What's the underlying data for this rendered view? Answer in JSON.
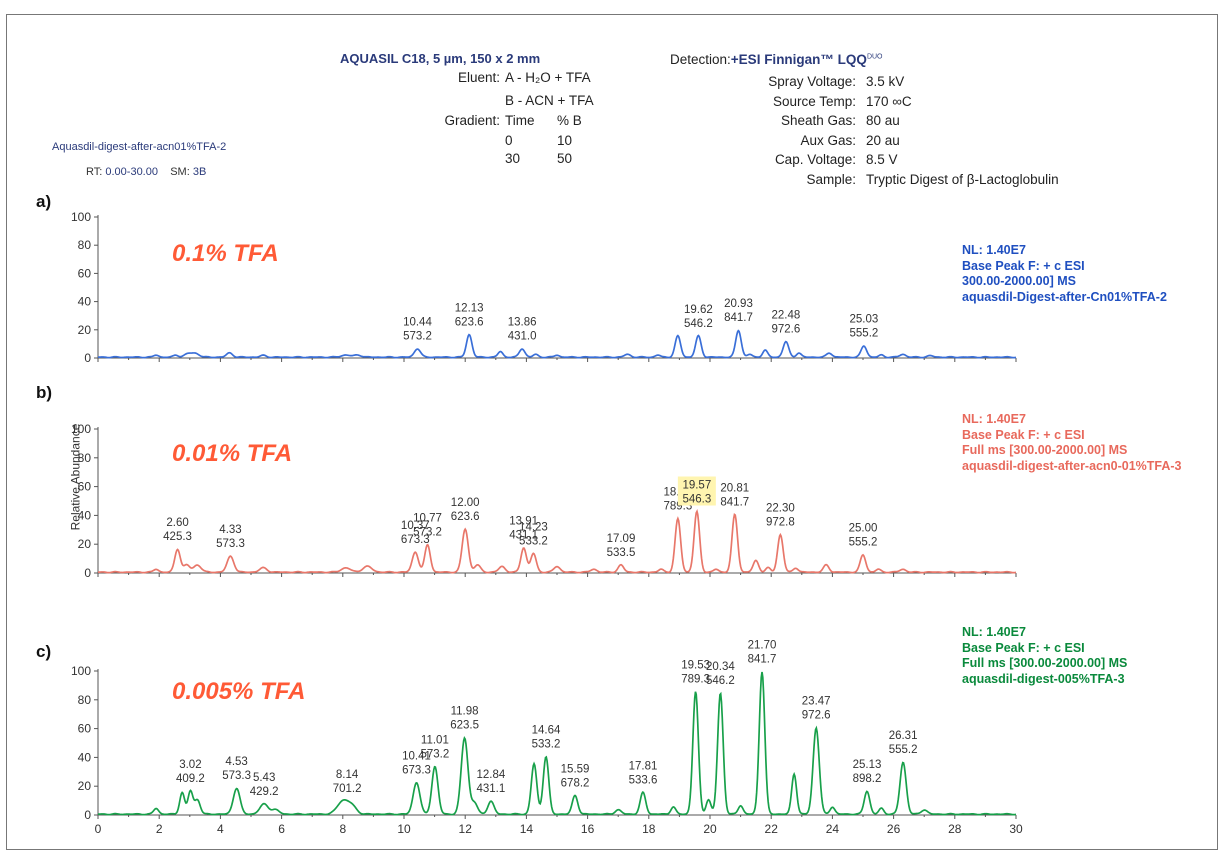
{
  "header": {
    "column": "AQUASIL C18, 5 µm, 150 x 2 mm",
    "eluent_label": "Eluent:",
    "eluent_a": "A - H₂O + TFA",
    "eluent_b": "B - ACN + TFA",
    "gradient_label": "Gradient:",
    "gradient_table": [
      [
        "Time",
        "% B"
      ],
      [
        "0",
        "10"
      ],
      [
        "30",
        "50"
      ]
    ],
    "detection_label": "Detection:",
    "detection_value": "+ESI Finnigan™ LQQ",
    "detection_sup": "DUO",
    "params": [
      {
        "label": "Spray Voltage:",
        "value": "3.5 kV"
      },
      {
        "label": "Source Temp:",
        "value": "170 ∞C"
      },
      {
        "label": "Sheath Gas:",
        "value": "80 au"
      },
      {
        "label": "Aux Gas:",
        "value": "20 au"
      },
      {
        "label": "Cap. Voltage:",
        "value": "8.5 V"
      },
      {
        "label": "Sample:",
        "value": "Tryptic Digest of β-Lactoglobulin"
      }
    ],
    "file_name": "Aquasdil-digest-after-acn01%TFA-2",
    "rt_label": "RT:",
    "rt_value": "0.00-30.00",
    "sm_label": "SM:",
    "sm_value": "3B"
  },
  "colors": {
    "a": "#3a6fd8",
    "b": "#e8776a",
    "c": "#18a04a"
  },
  "chart_data": [
    {
      "type": "line",
      "panel": "a)",
      "label": "0.1% TFA",
      "ylabel": "",
      "xlim": [
        0,
        30
      ],
      "ylim": [
        0,
        100
      ],
      "yticks": [
        0,
        20,
        40,
        60,
        80,
        100
      ],
      "info": [
        "NL: 1.40E7",
        "Base Peak F: + c ESI",
        "300.00-2000.00]  MS",
        "aquasdil-Digest-after-Cn01%TFA-2"
      ],
      "peaks": [
        [
          1.9,
          1.5,
          0.08
        ],
        [
          2.55,
          1.5,
          0.08
        ],
        [
          2.95,
          2.5,
          0.12
        ],
        [
          3.2,
          2.5,
          0.12
        ],
        [
          4.3,
          3,
          0.1
        ],
        [
          5.4,
          1.2,
          0.1
        ],
        [
          8.1,
          1.5,
          0.15
        ],
        [
          8.5,
          1.5,
          0.12
        ],
        [
          10.44,
          6,
          0.1
        ],
        [
          12.13,
          16,
          0.09
        ],
        [
          13.15,
          4,
          0.08
        ],
        [
          13.86,
          6,
          0.09
        ],
        [
          14.3,
          2,
          0.08
        ],
        [
          15.0,
          1.5,
          0.08
        ],
        [
          17.3,
          2,
          0.1
        ],
        [
          18.3,
          1.5,
          0.08
        ],
        [
          18.95,
          15,
          0.09
        ],
        [
          19.62,
          15,
          0.09
        ],
        [
          20.93,
          19,
          0.09
        ],
        [
          21.3,
          2,
          0.08
        ],
        [
          21.8,
          5,
          0.08
        ],
        [
          22.48,
          11,
          0.09
        ],
        [
          22.9,
          3,
          0.08
        ],
        [
          23.9,
          3,
          0.09
        ],
        [
          25.03,
          8,
          0.09
        ],
        [
          25.6,
          1.5,
          0.08
        ],
        [
          26.3,
          2,
          0.1
        ],
        [
          27.2,
          1,
          0.1
        ]
      ],
      "annotations": [
        {
          "rt": "10.44",
          "mz": "573.2",
          "x": 10.44,
          "y": 6
        },
        {
          "rt": "12.13",
          "mz": "623.6",
          "x": 12.13,
          "y": 16
        },
        {
          "rt": "13.86",
          "mz": "431.0",
          "x": 13.86,
          "y": 6
        },
        {
          "rt": "19.62",
          "mz": "546.2",
          "x": 19.62,
          "y": 15
        },
        {
          "rt": "20.93",
          "mz": "841.7",
          "x": 20.93,
          "y": 19
        },
        {
          "rt": "22.48",
          "mz": "972.6",
          "x": 22.48,
          "y": 11
        },
        {
          "rt": "25.03",
          "mz": "555.2",
          "x": 25.03,
          "y": 8
        }
      ]
    },
    {
      "type": "line",
      "panel": "b)",
      "label": "0.01% TFA",
      "ylabel": "Relative Abundance",
      "xlim": [
        0,
        30
      ],
      "ylim": [
        0,
        100
      ],
      "yticks": [
        0,
        20,
        40,
        60,
        80,
        100
      ],
      "info": [
        "NL: 1.40E7",
        "Base Peak F: + c ESI",
        "Full ms [300.00-2000.00] MS",
        "aquasdil-digest-after-acn0-01%TFA-3"
      ],
      "peaks": [
        [
          1.9,
          2,
          0.08
        ],
        [
          2.6,
          16,
          0.09
        ],
        [
          2.9,
          5,
          0.1
        ],
        [
          3.25,
          5,
          0.12
        ],
        [
          4.33,
          11,
          0.11
        ],
        [
          5.4,
          3,
          0.12
        ],
        [
          8.1,
          3,
          0.15
        ],
        [
          8.8,
          4,
          0.15
        ],
        [
          10.37,
          14,
          0.1
        ],
        [
          10.77,
          19,
          0.09
        ],
        [
          12.0,
          30,
          0.1
        ],
        [
          12.4,
          5,
          0.1
        ],
        [
          13.2,
          4,
          0.1
        ],
        [
          13.91,
          17,
          0.09
        ],
        [
          14.23,
          13,
          0.09
        ],
        [
          15.0,
          4,
          0.1
        ],
        [
          16.2,
          2,
          0.1
        ],
        [
          17.09,
          5,
          0.09
        ],
        [
          18.4,
          2,
          0.08
        ],
        [
          18.95,
          37,
          0.09
        ],
        [
          19.57,
          42,
          0.09
        ],
        [
          20.2,
          2,
          0.08
        ],
        [
          20.81,
          40,
          0.09
        ],
        [
          21.5,
          8,
          0.09
        ],
        [
          21.9,
          3,
          0.08
        ],
        [
          22.3,
          26,
          0.09
        ],
        [
          22.8,
          3,
          0.08
        ],
        [
          23.8,
          5,
          0.09
        ],
        [
          25.0,
          12,
          0.09
        ],
        [
          25.5,
          2,
          0.08
        ],
        [
          26.3,
          2,
          0.1
        ]
      ],
      "annotations": [
        {
          "rt": "2.60",
          "mz": "425.3",
          "x": 2.6,
          "y": 16
        },
        {
          "rt": "4.33",
          "mz": "573.3",
          "x": 4.33,
          "y": 11
        },
        {
          "rt": "10.37",
          "mz": "673.3",
          "x": 10.37,
          "y": 14
        },
        {
          "rt": "10.77",
          "mz": "573.2",
          "x": 10.77,
          "y": 19
        },
        {
          "rt": "12.00",
          "mz": "623.6",
          "x": 12.0,
          "y": 30
        },
        {
          "rt": "13.91",
          "mz": "431.1",
          "x": 13.91,
          "y": 17
        },
        {
          "rt": "14.23",
          "mz": "533.2",
          "x": 14.23,
          "y": 13
        },
        {
          "rt": "17.09",
          "mz": "533.5",
          "x": 17.09,
          "y": 5
        },
        {
          "rt": "18.95",
          "mz": "789.3",
          "x": 18.95,
          "y": 37
        },
        {
          "rt": "19.57",
          "mz": "546.3",
          "x": 19.57,
          "y": 42,
          "highlight": true
        },
        {
          "rt": "20.81",
          "mz": "841.7",
          "x": 20.81,
          "y": 40
        },
        {
          "rt": "22.30",
          "mz": "972.8",
          "x": 22.3,
          "y": 26
        },
        {
          "rt": "25.00",
          "mz": "555.2",
          "x": 25.0,
          "y": 12
        }
      ]
    },
    {
      "type": "line",
      "panel": "c)",
      "label": "0.005% TFA",
      "ylabel": "",
      "xlim": [
        0,
        30
      ],
      "ylim": [
        0,
        100
      ],
      "yticks": [
        0,
        20,
        40,
        60,
        80,
        100
      ],
      "xticks": [
        0,
        2,
        4,
        6,
        8,
        10,
        12,
        14,
        16,
        18,
        20,
        22,
        24,
        26,
        28,
        30
      ],
      "info": [
        "NL: 1.40E7",
        "Base Peak F: + c ESI",
        "Full ms [300.00-2000.00] MS",
        "aquasdil-digest-005%TFA-3"
      ],
      "peaks": [
        [
          1.9,
          4,
          0.08
        ],
        [
          2.75,
          15,
          0.08
        ],
        [
          3.02,
          16,
          0.08
        ],
        [
          3.25,
          10,
          0.09
        ],
        [
          4.53,
          18,
          0.11
        ],
        [
          5.43,
          7,
          0.14
        ],
        [
          5.8,
          3,
          0.12
        ],
        [
          8.0,
          9,
          0.18
        ],
        [
          8.3,
          5,
          0.15
        ],
        [
          10.41,
          22,
          0.11
        ],
        [
          11.01,
          33,
          0.1
        ],
        [
          11.98,
          53,
          0.11
        ],
        [
          12.3,
          8,
          0.1
        ],
        [
          12.84,
          9,
          0.1
        ],
        [
          14.25,
          35,
          0.09
        ],
        [
          14.64,
          40,
          0.09
        ],
        [
          15.59,
          13,
          0.09
        ],
        [
          17.0,
          3,
          0.1
        ],
        [
          17.81,
          15,
          0.09
        ],
        [
          18.8,
          5,
          0.08
        ],
        [
          19.53,
          85,
          0.09
        ],
        [
          19.95,
          10,
          0.08
        ],
        [
          20.34,
          84,
          0.09
        ],
        [
          21.0,
          6,
          0.08
        ],
        [
          21.7,
          99,
          0.09
        ],
        [
          22.75,
          28,
          0.08
        ],
        [
          23.47,
          60,
          0.1
        ],
        [
          24.0,
          5,
          0.08
        ],
        [
          25.13,
          16,
          0.09
        ],
        [
          25.6,
          4,
          0.08
        ],
        [
          26.31,
          36,
          0.1
        ],
        [
          27.0,
          3,
          0.1
        ]
      ],
      "annotations": [
        {
          "rt": "3.02",
          "mz": "409.2",
          "x": 3.02,
          "y": 16
        },
        {
          "rt": "4.53",
          "mz": "573.3",
          "x": 4.53,
          "y": 18
        },
        {
          "rt": "5.43",
          "mz": "429.2",
          "x": 5.43,
          "y": 7
        },
        {
          "rt": "8.14",
          "mz": "701.2",
          "x": 8.14,
          "y": 9
        },
        {
          "rt": "10.41",
          "mz": "673.3",
          "x": 10.41,
          "y": 22
        },
        {
          "rt": "11.01",
          "mz": "573.2",
          "x": 11.01,
          "y": 33
        },
        {
          "rt": "11.98",
          "mz": "623.5",
          "x": 11.98,
          "y": 53
        },
        {
          "rt": "12.84",
          "mz": "431.1",
          "x": 12.84,
          "y": 9
        },
        {
          "rt": "14.64",
          "mz": "533.2",
          "x": 14.64,
          "y": 40
        },
        {
          "rt": "15.59",
          "mz": "678.2",
          "x": 15.59,
          "y": 13
        },
        {
          "rt": "17.81",
          "mz": "533.6",
          "x": 17.81,
          "y": 15
        },
        {
          "rt": "19.53",
          "mz": "789.3",
          "x": 19.53,
          "y": 85
        },
        {
          "rt": "20.34",
          "mz": "546.2",
          "x": 20.34,
          "y": 84
        },
        {
          "rt": "21.70",
          "mz": "841.7",
          "x": 21.7,
          "y": 99
        },
        {
          "rt": "23.47",
          "mz": "972.6",
          "x": 23.47,
          "y": 60
        },
        {
          "rt": "25.13",
          "mz": "898.2",
          "x": 25.13,
          "y": 16
        },
        {
          "rt": "26.31",
          "mz": "555.2",
          "x": 26.31,
          "y": 36
        }
      ]
    }
  ]
}
